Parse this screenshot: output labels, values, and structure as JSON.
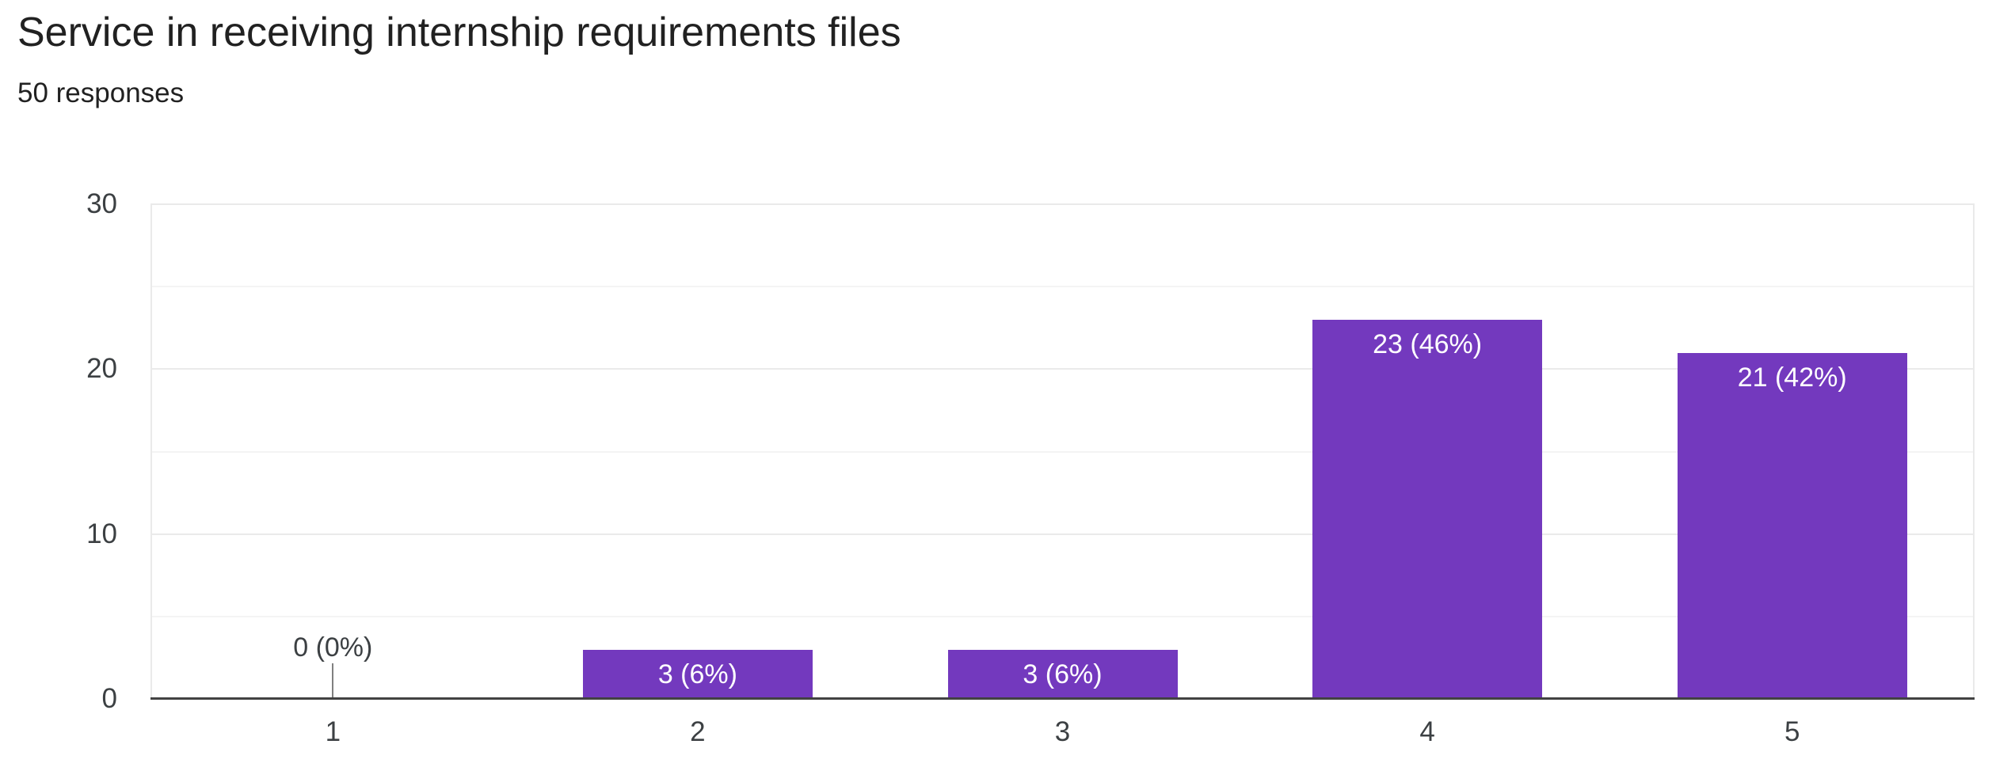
{
  "header": {
    "title": "Service in receiving internship requirements files",
    "subtitle": "50 responses"
  },
  "colors": {
    "bar": "#7339be",
    "bar_label_text": "#ffffff",
    "title_text": "#212121",
    "axis_text": "#3c4043",
    "baseline": "#424242",
    "gridline_major": "#eaeaea",
    "gridline_minor": "#f4f4f4",
    "zero_tick": "#808080",
    "background": "#ffffff"
  },
  "chart_data": {
    "type": "bar",
    "orientation": "vertical",
    "title": "Service in receiving internship requirements files",
    "subtitle": "50 responses",
    "total_responses": 50,
    "categories": [
      "1",
      "2",
      "3",
      "4",
      "5"
    ],
    "values": [
      0,
      3,
      3,
      23,
      21
    ],
    "percentages": [
      0,
      6,
      6,
      46,
      42
    ],
    "bar_labels": [
      "0 (0%)",
      "3 (6%)",
      "3 (6%)",
      "23 (46%)",
      "21 (42%)"
    ],
    "xlabel": "",
    "ylabel": "",
    "ylim": [
      0,
      30
    ],
    "yticks": [
      0,
      10,
      20,
      30
    ],
    "gridline_interval": 5,
    "grid": true,
    "legend": false
  }
}
